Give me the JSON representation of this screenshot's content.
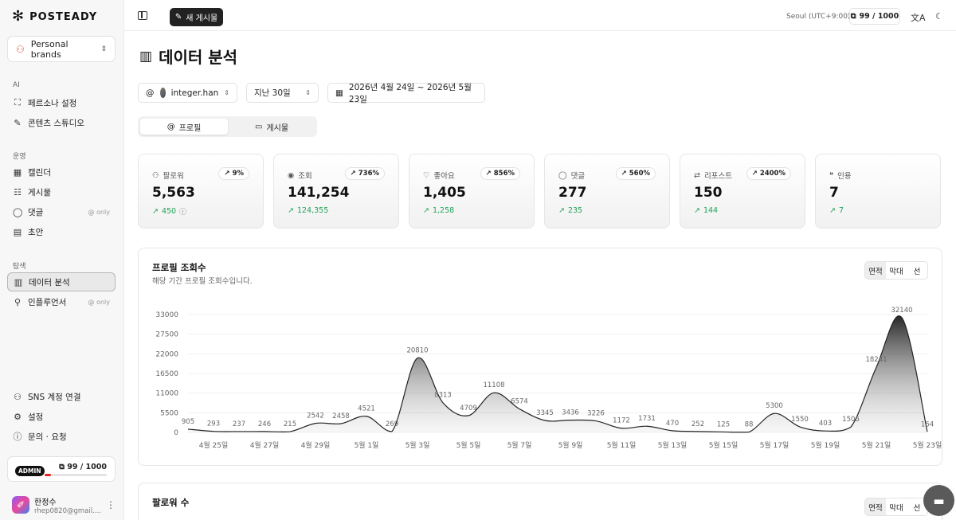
{
  "app": {
    "logo_text": "POSTEADY"
  },
  "sidebar": {
    "brand_select": "Personal brands",
    "sections": {
      "ai": "AI",
      "ops": "운영",
      "explore": "탐색"
    },
    "ai_items": [
      {
        "label": "페르소나 설정",
        "icon": "persona-icon"
      },
      {
        "label": "콘텐츠 스튜디오",
        "icon": "wand-icon"
      }
    ],
    "ops_items": [
      {
        "label": "캘린더",
        "icon": "calendar-icon"
      },
      {
        "label": "게시물",
        "icon": "list-icon"
      },
      {
        "label": "댓글",
        "icon": "comment-icon",
        "tag": "only"
      },
      {
        "label": "초안",
        "icon": "document-icon"
      }
    ],
    "explore_items": [
      {
        "label": "데이터 분석",
        "icon": "chart-icon"
      },
      {
        "label": "인플루언서",
        "icon": "influencer-icon",
        "tag": "only"
      }
    ],
    "bottom_items": [
      {
        "label": "SNS 계정 연결",
        "icon": "users-icon"
      },
      {
        "label": "설정",
        "icon": "gear-icon"
      },
      {
        "label": "문의 · 요청",
        "icon": "help-icon"
      }
    ],
    "usage": {
      "badge": "ADMIN",
      "text": "99 / 1000",
      "used": 99,
      "total": 1000
    },
    "user": {
      "name": "한정수",
      "email": "rhep0820@gmail...."
    }
  },
  "topbar": {
    "new_post_label": "새 게시물",
    "timezone": "Seoul (UTC+9:00)",
    "credits": "99 / 1000"
  },
  "page": {
    "title": "데이터 분석",
    "filters": {
      "account": "integer.han",
      "period": "지난 30일",
      "date_range": "2026년 4월 24일 ~ 2026년 5월 23일"
    },
    "tabs": [
      {
        "label": "프로필",
        "active": true
      },
      {
        "label": "게시물",
        "active": false
      }
    ],
    "stats": [
      {
        "label": "팔로워",
        "icon": "users-icon",
        "badge": "9%",
        "value": "5,563",
        "delta": "450",
        "info": true
      },
      {
        "label": "조회",
        "icon": "eye-icon",
        "badge": "736%",
        "value": "141,254",
        "delta": "124,355"
      },
      {
        "label": "좋아요",
        "icon": "heart-icon",
        "badge": "856%",
        "value": "1,405",
        "delta": "1,258"
      },
      {
        "label": "댓글",
        "icon": "comment-icon",
        "badge": "560%",
        "value": "277",
        "delta": "235"
      },
      {
        "label": "리포스트",
        "icon": "repost-icon",
        "badge": "2400%",
        "value": "150",
        "delta": "144"
      },
      {
        "label": "인용",
        "icon": "quote-icon",
        "badge": "",
        "value": "7",
        "delta": "7"
      }
    ],
    "chart_card": {
      "title": "프로필 조회수",
      "subtitle": "해당 기간 프로필 조회수입니다.",
      "modes": [
        "면적",
        "막대",
        "선"
      ],
      "active_mode": "면적"
    },
    "chart_card2": {
      "title": "팔로워 수",
      "modes": [
        "면적",
        "막대",
        "선"
      ],
      "active_mode": "면적"
    }
  },
  "chart_data": {
    "type": "area",
    "title": "프로필 조회수",
    "subtitle": "해당 기간 프로필 조회수입니다.",
    "xlabel": "",
    "ylabel": "",
    "ylim": [
      0,
      33000
    ],
    "yticks": [
      0,
      5500,
      11000,
      16500,
      22000,
      27500,
      33000
    ],
    "x": [
      "4월 24일",
      "4월 25일",
      "4월 26일",
      "4월 27일",
      "4월 28일",
      "4월 29일",
      "4월 30일",
      "5월 1일",
      "5월 2일",
      "5월 3일",
      "5월 4일",
      "5월 5일",
      "5월 6일",
      "5월 7일",
      "5월 8일",
      "5월 9일",
      "5월 10일",
      "5월 11일",
      "5월 12일",
      "5월 13일",
      "5월 14일",
      "5월 15일",
      "5월 16일",
      "5월 17일",
      "5월 18일",
      "5월 19일",
      "5월 20일",
      "5월 21일",
      "5월 22일",
      "5월 23일"
    ],
    "xtick_labels": [
      "4월 25일",
      "4월 27일",
      "4월 29일",
      "5월 1일",
      "5월 3일",
      "5월 5일",
      "5월 7일",
      "5월 9일",
      "5월 11일",
      "5월 13일",
      "5월 15일",
      "5월 17일",
      "5월 19일",
      "5월 21일",
      "5월 23일"
    ],
    "values": [
      905,
      293,
      237,
      246,
      215,
      2542,
      2458,
      4521,
      269,
      20810,
      8313,
      4709,
      11108,
      6574,
      3345,
      3436,
      3226,
      1172,
      1731,
      470,
      252,
      125,
      88,
      5300,
      1550,
      403,
      1506,
      18241,
      32140,
      164
    ],
    "grid": true,
    "legend": "none"
  }
}
